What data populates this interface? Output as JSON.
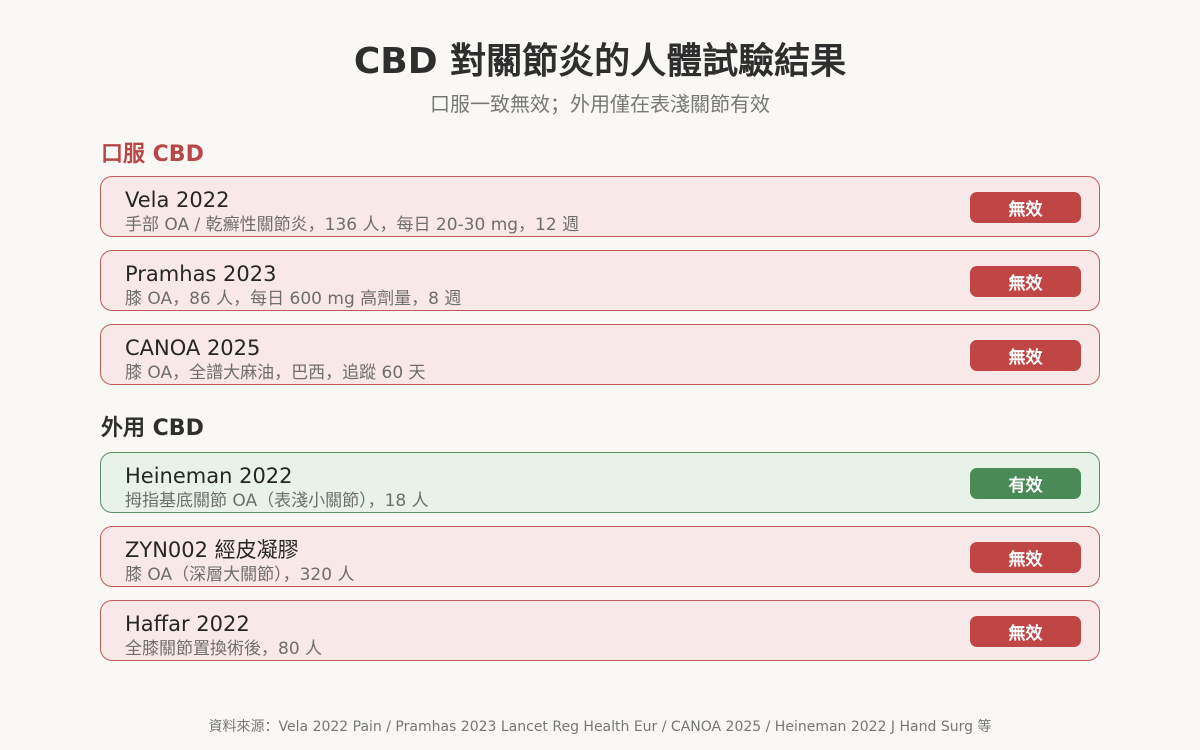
{
  "header": {
    "title": "CBD 對關節炎的人體試驗結果",
    "subtitle": "口服一致無效；外用僅在表淺關節有效"
  },
  "sections": [
    {
      "heading": "口服 CBD",
      "heading_color": "#b84848",
      "studies": [
        {
          "name": "Vela 2022",
          "detail": "手部 OA / 乾癬性關節炎，136 人，每日 20-30 mg，12 週",
          "result": "無效",
          "status": "negative"
        },
        {
          "name": "Pramhas 2023",
          "detail": "膝 OA，86 人，每日 600 mg 高劑量，8 週",
          "result": "無效",
          "status": "negative"
        },
        {
          "name": "CANOA 2025",
          "detail": "膝 OA，全譜大麻油，巴西，追蹤 60 天",
          "result": "無效",
          "status": "negative"
        }
      ]
    },
    {
      "heading": "外用 CBD",
      "heading_color": "#2e2e2e",
      "studies": [
        {
          "name": "Heineman 2022",
          "detail": "拇指基底關節 OA（表淺小關節），18 人",
          "result": "有效",
          "status": "positive"
        },
        {
          "name": "ZYN002 經皮凝膠",
          "detail": "膝 OA（深層大關節），320 人",
          "result": "無效",
          "status": "negative"
        },
        {
          "name": "Haffar 2022",
          "detail": "全膝關節置換術後，80 人",
          "result": "無效",
          "status": "negative"
        }
      ]
    }
  ],
  "footer": {
    "source": "資料來源：Vela 2022 Pain / Pramhas 2023 Lancet Reg Health Eur / CANOA 2025 / Heineman 2022 J Hand Surg 等"
  },
  "colors": {
    "negative_badge": "#c04545",
    "negative_card": "#f9e8e8",
    "positive_badge": "#4a8a56",
    "positive_card": "#e8f2e9"
  }
}
